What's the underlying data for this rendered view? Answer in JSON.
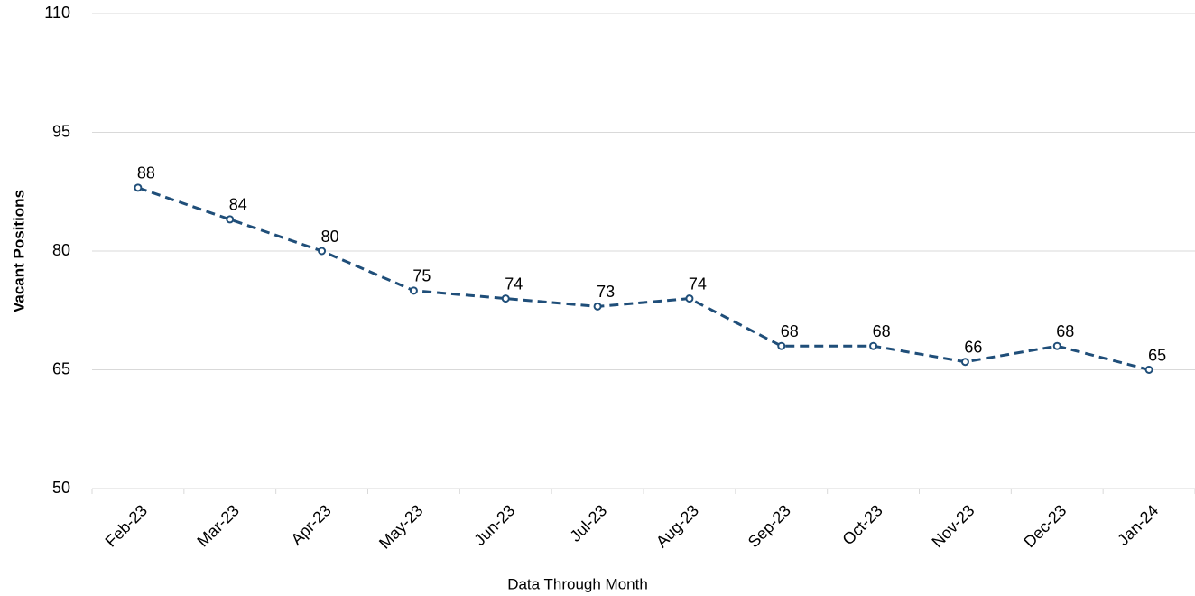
{
  "chart_data": {
    "type": "line",
    "x_label": "Data Through Month",
    "y_label": "Vacant Positions",
    "categories": [
      "Feb-23",
      "Mar-23",
      "Apr-23",
      "May-23",
      "Jun-23",
      "Jul-23",
      "Aug-23",
      "Sep-23",
      "Oct-23",
      "Nov-23",
      "Dec-23",
      "Jan-24"
    ],
    "series": [
      {
        "name": "Vacant Positions",
        "color": "#1f4e79",
        "values": [
          88,
          84,
          80,
          75,
          74,
          73,
          74,
          68,
          68,
          66,
          68,
          65
        ]
      }
    ],
    "ylim": [
      50,
      110
    ],
    "yticks": [
      50,
      65,
      80,
      95,
      110
    ],
    "grid": true,
    "line_style": "dashed",
    "data_labels": true
  }
}
